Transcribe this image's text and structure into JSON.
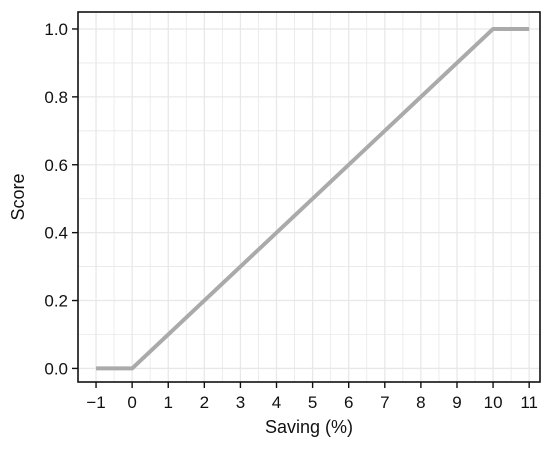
{
  "chart_data": {
    "type": "line",
    "title": "",
    "xlabel": "Saving (%)",
    "ylabel": "Score",
    "xlim": [
      -1.5,
      11.3
    ],
    "ylim": [
      -0.04,
      1.05
    ],
    "x_ticks": [
      -1,
      0,
      1,
      2,
      3,
      4,
      5,
      6,
      7,
      8,
      9,
      10,
      11
    ],
    "x_tick_labels": [
      "−1",
      "0",
      "1",
      "2",
      "3",
      "4",
      "5",
      "6",
      "7",
      "8",
      "9",
      "10",
      "11"
    ],
    "y_ticks": [
      0.0,
      0.2,
      0.4,
      0.6,
      0.8,
      1.0
    ],
    "y_tick_labels": [
      "0.0",
      "0.2",
      "0.4",
      "0.6",
      "0.8",
      "1.0"
    ],
    "grid": true,
    "line_color": "#aaaaaa",
    "grid_color": "#e8e8e8",
    "series": [
      {
        "x": [
          -1,
          0,
          10,
          11
        ],
        "y": [
          0.0,
          0.0,
          1.0,
          1.0
        ]
      }
    ]
  }
}
